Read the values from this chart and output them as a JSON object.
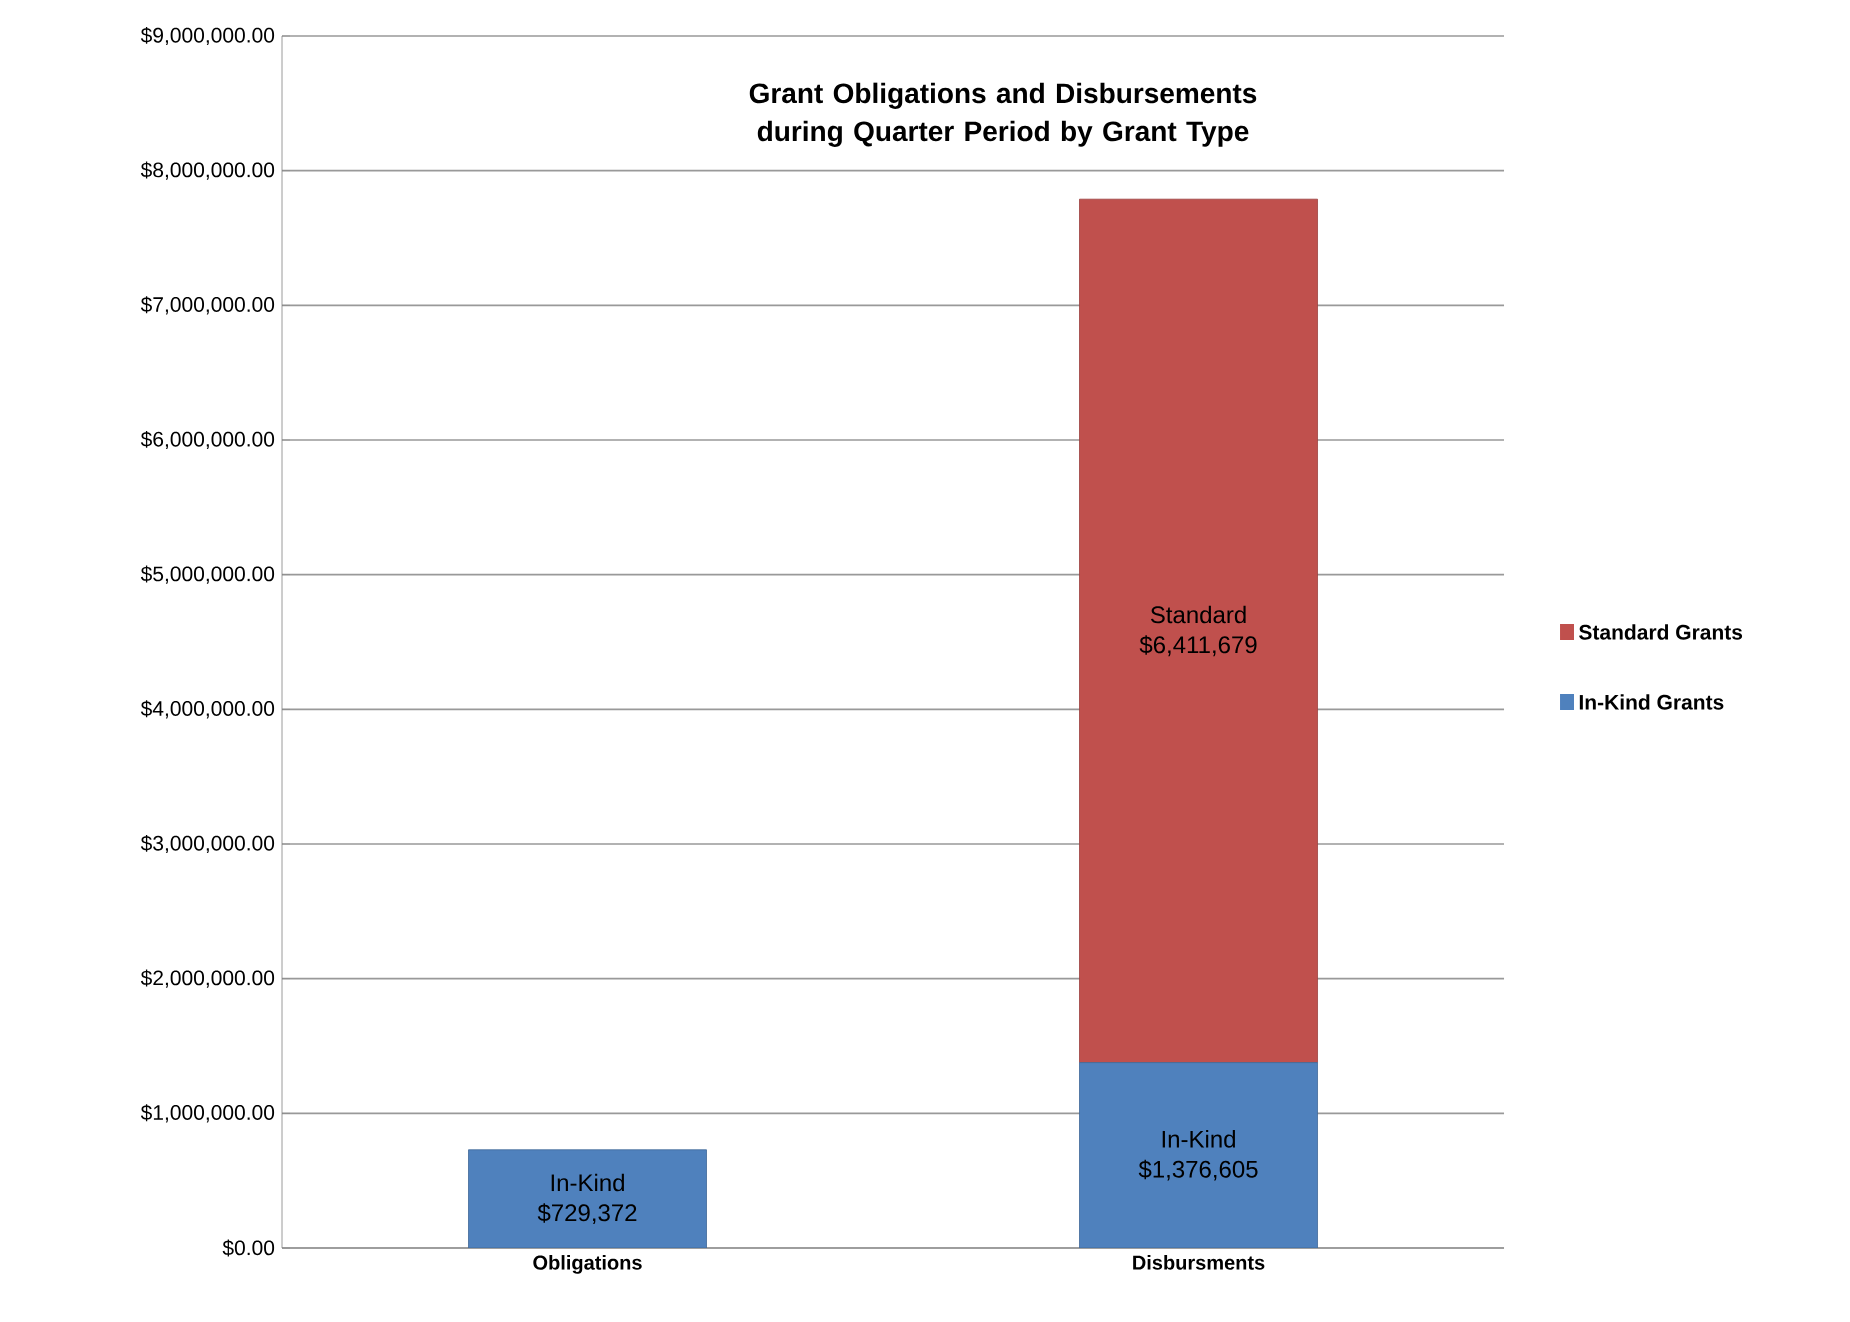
{
  "chart_data": {
    "type": "bar",
    "title": "Grant Obligations and Disbursements during Quarter Period by Grant Type",
    "categories": [
      "Obligations",
      "Disbursments"
    ],
    "stacked": true,
    "series": [
      {
        "name": "In-Kind Grants",
        "color": "#4f81bd",
        "values": [
          729372,
          1376605
        ],
        "value_labels": [
          "In-Kind $729,372",
          "In-Kind $1,376,605"
        ]
      },
      {
        "name": "Standard Grants",
        "color": "#c0504d",
        "values": [
          null,
          6411679
        ],
        "value_labels": [
          null,
          "Standard $6,411,679"
        ]
      }
    ],
    "ylim": [
      0,
      9000000
    ],
    "yticks": [
      {
        "value": 0,
        "label": "$0.00"
      },
      {
        "value": 1000000,
        "label": "$1,000,000.00"
      },
      {
        "value": 2000000,
        "label": "$2,000,000.00"
      },
      {
        "value": 3000000,
        "label": "$3,000,000.00"
      },
      {
        "value": 4000000,
        "label": "$4,000,000.00"
      },
      {
        "value": 5000000,
        "label": "$5,000,000.00"
      },
      {
        "value": 6000000,
        "label": "$6,000,000.00"
      },
      {
        "value": 7000000,
        "label": "$7,000,000.00"
      },
      {
        "value": 8000000,
        "label": "$8,000,000.00"
      },
      {
        "value": 9000000,
        "label": "$9,000,000.00"
      }
    ],
    "grid": "y",
    "legend": "right"
  }
}
